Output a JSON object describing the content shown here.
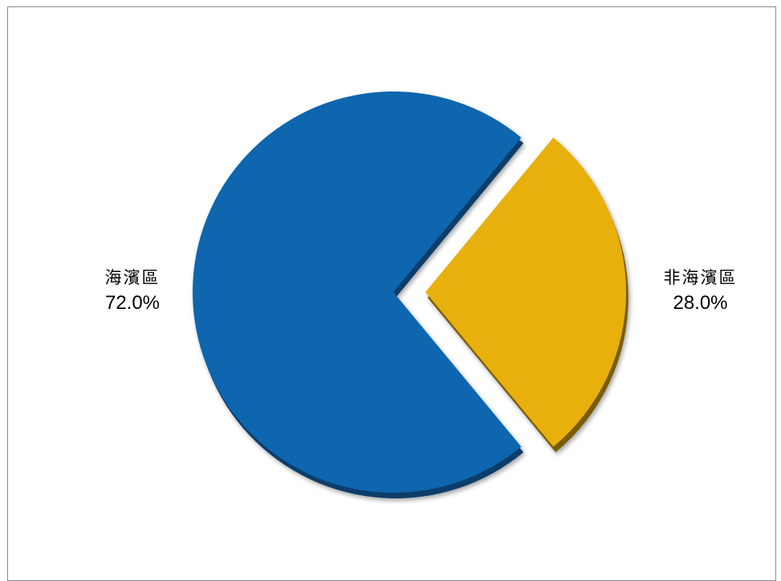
{
  "chart_data": {
    "type": "pie",
    "title": "",
    "slices": [
      {
        "label": "海濱區",
        "value": 72.0,
        "display": "72.0%",
        "color": "#0766ae",
        "side_color": "#0b3d6a",
        "exploded": false
      },
      {
        "label": "非海濱區",
        "value": 28.0,
        "display": "28.0%",
        "color": "#e8b00b",
        "side_color": "#7a5c05",
        "exploded": true
      }
    ],
    "legend": "none",
    "data_labels": "outside"
  }
}
